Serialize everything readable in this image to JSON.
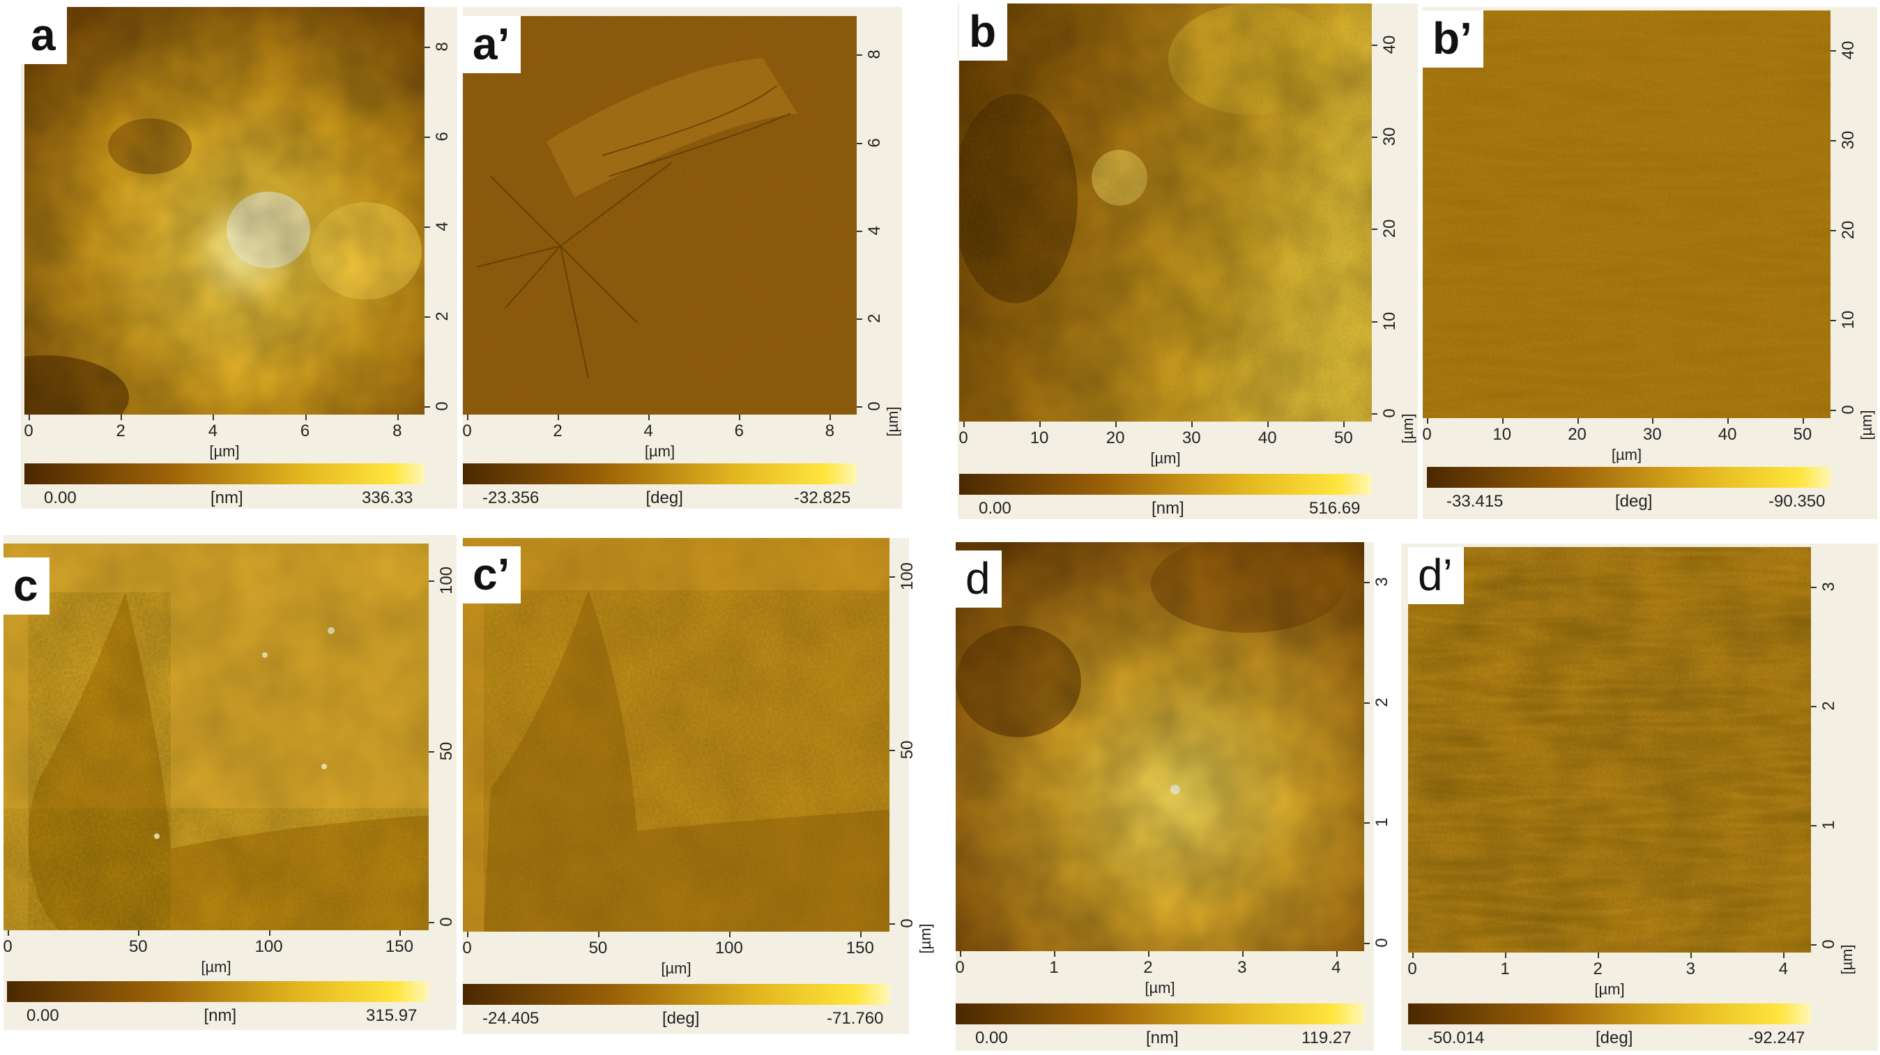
{
  "colors": {
    "dark": "#4a2800",
    "mid": "#b07a10",
    "light": "#ffe53d",
    "pale": "#fff7b8",
    "panel_bg": "#f3f0e3"
  },
  "panels": [
    {
      "id": "a",
      "label": "a",
      "kind": "height",
      "x_ticks": [
        "0",
        "2",
        "4",
        "6",
        "8"
      ],
      "y_ticks": [
        "0",
        "2",
        "4",
        "6",
        "8"
      ],
      "x_unit": "[µm]",
      "y_unit": "",
      "bar_min": "0.00",
      "bar_unit": "[nm]",
      "bar_max": "336.33"
    },
    {
      "id": "a2",
      "label": "a’",
      "kind": "phase",
      "x_ticks": [
        "0",
        "2",
        "4",
        "6",
        "8"
      ],
      "y_ticks": [
        "0",
        "2",
        "4",
        "6",
        "8"
      ],
      "x_unit": "[µm]",
      "y_unit": "[µm]",
      "bar_min": "-23.356",
      "bar_unit": "[deg]",
      "bar_max": "-32.825"
    },
    {
      "id": "b",
      "label": "b",
      "kind": "height",
      "x_ticks": [
        "0",
        "10",
        "20",
        "30",
        "40",
        "50"
      ],
      "y_ticks": [
        "0",
        "10",
        "20",
        "30",
        "40"
      ],
      "x_unit": "[µm]",
      "y_unit": "[µm]",
      "bar_min": "0.00",
      "bar_unit": "[nm]",
      "bar_max": "516.69"
    },
    {
      "id": "b2",
      "label": "b’",
      "kind": "phase",
      "x_ticks": [
        "0",
        "10",
        "20",
        "30",
        "40",
        "50"
      ],
      "y_ticks": [
        "0",
        "10",
        "20",
        "30",
        "40"
      ],
      "x_unit": "[µm]",
      "y_unit": "[µm]",
      "bar_min": "-33.415",
      "bar_unit": "[deg]",
      "bar_max": "-90.350"
    },
    {
      "id": "c",
      "label": "c",
      "kind": "height",
      "x_ticks": [
        "0",
        "50",
        "100",
        "150"
      ],
      "y_ticks": [
        "0",
        "50",
        "100"
      ],
      "x_unit": "[µm]",
      "y_unit": "",
      "bar_min": "0.00",
      "bar_unit": "[nm]",
      "bar_max": "315.97"
    },
    {
      "id": "c2",
      "label": "c’",
      "kind": "phase",
      "x_ticks": [
        "0",
        "50",
        "100",
        "150"
      ],
      "y_ticks": [
        "0",
        "50",
        "100"
      ],
      "x_unit": "[µm]",
      "y_unit": "[µm]",
      "bar_min": "-24.405",
      "bar_unit": "[deg]",
      "bar_max": "-71.760"
    },
    {
      "id": "d",
      "label": "d",
      "kind": "height",
      "x_ticks": [
        "0",
        "1",
        "2",
        "3",
        "4"
      ],
      "y_ticks": [
        "0",
        "1",
        "2",
        "3"
      ],
      "x_unit": "[µm]",
      "y_unit": "",
      "bar_min": "0.00",
      "bar_unit": "[nm]",
      "bar_max": "119.27"
    },
    {
      "id": "d2",
      "label": "d’",
      "kind": "phase",
      "x_ticks": [
        "0",
        "1",
        "2",
        "3",
        "4"
      ],
      "y_ticks": [
        "0",
        "1",
        "2",
        "3"
      ],
      "x_unit": "[µm]",
      "y_unit": "[µm]",
      "bar_min": "-50.014",
      "bar_unit": "[deg]",
      "bar_max": "-92.247"
    }
  ]
}
